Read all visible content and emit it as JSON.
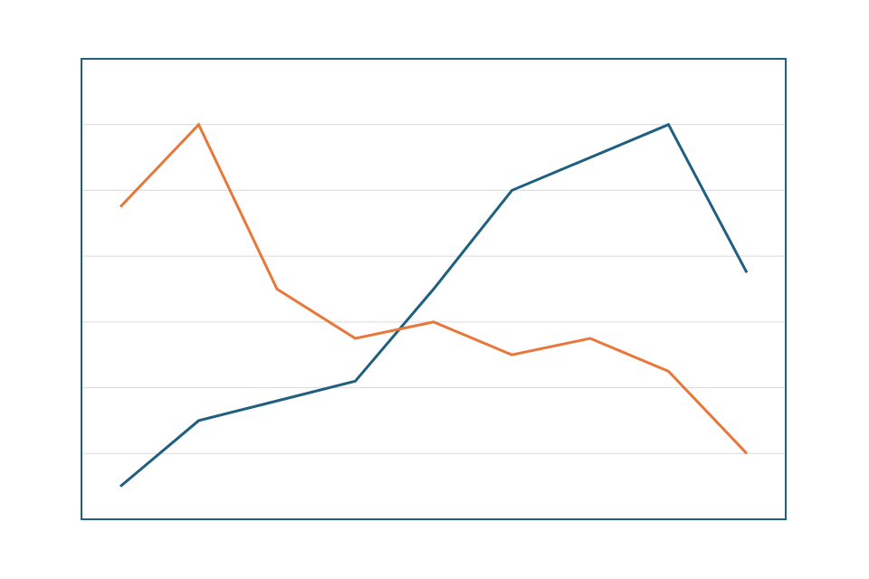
{
  "chart_data": {
    "type": "line",
    "title": "",
    "xlabel": "",
    "ylabel": "",
    "x": [
      1,
      2,
      3,
      4,
      5,
      6,
      7,
      8,
      9
    ],
    "ylim": [
      0,
      7
    ],
    "y_gridlines": [
      1,
      2,
      3,
      4,
      5,
      6
    ],
    "grid": "horizontal",
    "legend": "none",
    "series": [
      {
        "values": [
          0.5,
          1.5,
          1.8,
          2.1,
          3.5,
          5.0,
          5.5,
          6.0,
          3.75
        ],
        "color": "#1f5f7f"
      },
      {
        "values": [
          4.75,
          6.0,
          3.5,
          2.75,
          3.0,
          2.5,
          2.75,
          2.25,
          1.0
        ],
        "color": "#e8773a"
      }
    ],
    "colors": {
      "frame": "#1f5f7f",
      "grid": "#d9d9d9",
      "background": "#ffffff"
    }
  }
}
